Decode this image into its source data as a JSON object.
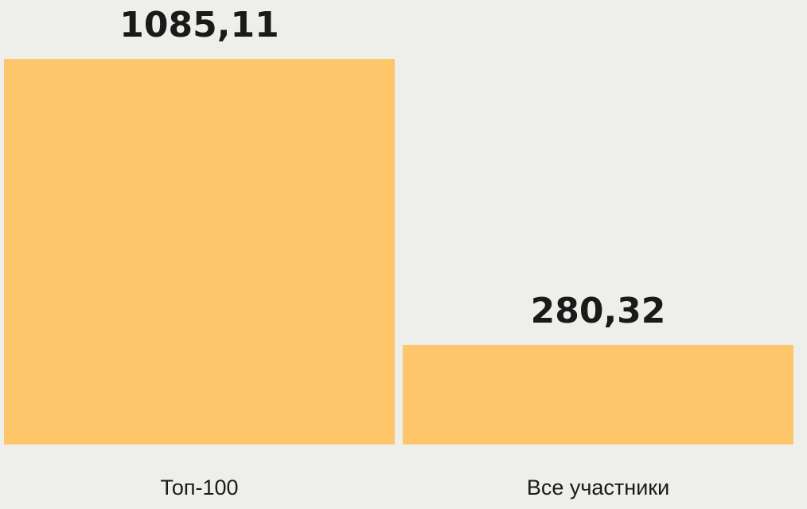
{
  "chart_data": {
    "type": "bar",
    "categories": [
      "Топ-100",
      "Все участники"
    ],
    "values": [
      1085.11,
      280.32
    ],
    "value_labels": [
      "1085,11",
      "280,32"
    ],
    "title": "",
    "xlabel": "",
    "ylabel": "",
    "ylim": [
      0,
      1085.11
    ],
    "grid": false,
    "bar_color": "#fdc66a",
    "background": "#eeeeea"
  }
}
